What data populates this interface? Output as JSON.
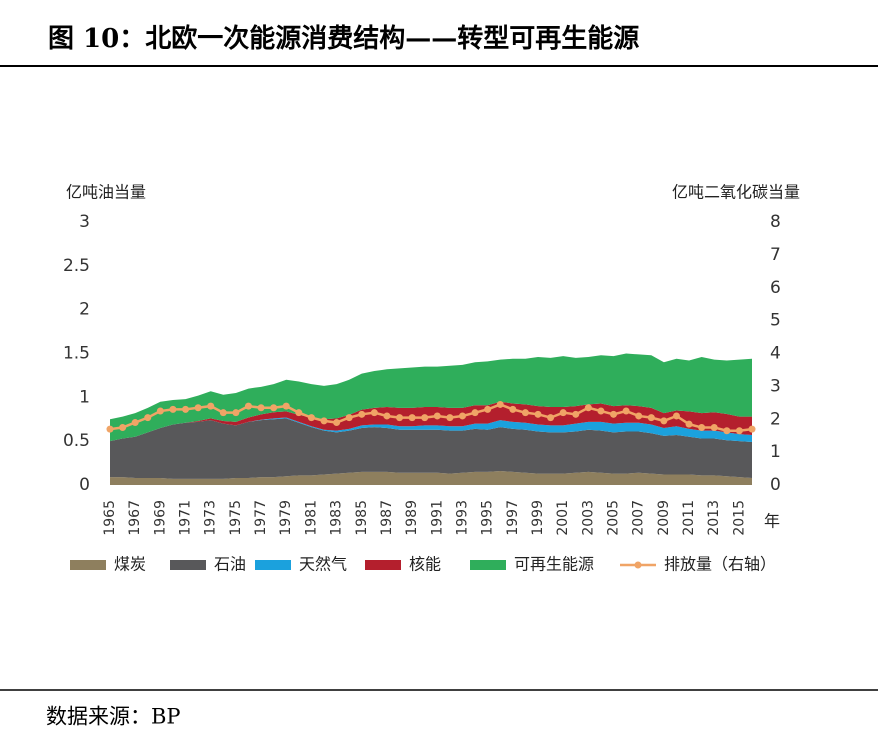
{
  "chart_data": {
    "type": "stacked-area-line",
    "title": "图 10：北欧一次能源消费结构——转型可再生能源",
    "source": "数据来源：BP",
    "y_label": "亿吨油当量",
    "y2_label": "亿吨二氧化碳当量",
    "x_label": "年",
    "x": [
      1965,
      1966,
      1967,
      1968,
      1969,
      1970,
      1971,
      1972,
      1973,
      1974,
      1975,
      1976,
      1977,
      1978,
      1979,
      1980,
      1981,
      1982,
      1983,
      1984,
      1985,
      1986,
      1987,
      1988,
      1989,
      1990,
      1991,
      1992,
      1993,
      1994,
      1995,
      1996,
      1997,
      1998,
      1999,
      2000,
      2001,
      2002,
      2003,
      2004,
      2005,
      2006,
      2007,
      2008,
      2009,
      2010,
      2011,
      2012,
      2013,
      2014,
      2015,
      2016
    ],
    "xlim": [
      1965,
      2016
    ],
    "xticks": [
      1965,
      1967,
      1969,
      1971,
      1973,
      1975,
      1977,
      1979,
      1981,
      1983,
      1985,
      1987,
      1989,
      1991,
      1993,
      1995,
      1997,
      1999,
      2001,
      2003,
      2005,
      2007,
      2009,
      2011,
      2013,
      2015
    ],
    "ylim": [
      0,
      3
    ],
    "yticks": [
      0,
      0.5,
      1,
      1.5,
      2,
      2.5,
      3
    ],
    "y2lim": [
      0,
      8
    ],
    "y2ticks": [
      0,
      1,
      2,
      3,
      4,
      5,
      6,
      7,
      8
    ],
    "grid": false,
    "series": [
      {
        "name": "煤炭",
        "color": "#8e7f5e",
        "values": [
          0.09,
          0.09,
          0.08,
          0.08,
          0.08,
          0.07,
          0.07,
          0.07,
          0.07,
          0.07,
          0.08,
          0.08,
          0.09,
          0.09,
          0.1,
          0.11,
          0.11,
          0.12,
          0.13,
          0.14,
          0.15,
          0.15,
          0.15,
          0.14,
          0.14,
          0.14,
          0.14,
          0.13,
          0.14,
          0.15,
          0.15,
          0.16,
          0.15,
          0.14,
          0.13,
          0.13,
          0.13,
          0.14,
          0.15,
          0.14,
          0.13,
          0.13,
          0.14,
          0.13,
          0.12,
          0.12,
          0.12,
          0.11,
          0.11,
          0.1,
          0.09,
          0.08
        ]
      },
      {
        "name": "石油",
        "color": "#58585a",
        "values": [
          0.41,
          0.44,
          0.47,
          0.52,
          0.57,
          0.62,
          0.64,
          0.65,
          0.67,
          0.63,
          0.6,
          0.64,
          0.65,
          0.66,
          0.66,
          0.6,
          0.55,
          0.5,
          0.47,
          0.48,
          0.5,
          0.51,
          0.5,
          0.49,
          0.49,
          0.49,
          0.49,
          0.49,
          0.48,
          0.49,
          0.48,
          0.5,
          0.49,
          0.49,
          0.48,
          0.47,
          0.47,
          0.47,
          0.48,
          0.48,
          0.47,
          0.48,
          0.47,
          0.46,
          0.44,
          0.45,
          0.43,
          0.42,
          0.42,
          0.41,
          0.41,
          0.41
        ]
      },
      {
        "name": "天然气",
        "color": "#1ba1dd",
        "values": [
          0,
          0,
          0,
          0,
          0,
          0,
          0,
          0,
          0,
          0,
          0,
          0,
          0.005,
          0.01,
          0.01,
          0.01,
          0.01,
          0.01,
          0.02,
          0.02,
          0.03,
          0.03,
          0.04,
          0.04,
          0.04,
          0.05,
          0.05,
          0.05,
          0.05,
          0.06,
          0.07,
          0.08,
          0.08,
          0.08,
          0.08,
          0.08,
          0.08,
          0.09,
          0.09,
          0.1,
          0.1,
          0.1,
          0.1,
          0.1,
          0.09,
          0.1,
          0.09,
          0.09,
          0.09,
          0.09,
          0.08,
          0.08
        ]
      },
      {
        "name": "核能",
        "color": "#b41f2d",
        "values": [
          0,
          0,
          0,
          0,
          0,
          0,
          0,
          0.01,
          0.02,
          0.03,
          0.04,
          0.05,
          0.06,
          0.07,
          0.07,
          0.08,
          0.1,
          0.12,
          0.14,
          0.16,
          0.18,
          0.19,
          0.2,
          0.21,
          0.21,
          0.21,
          0.21,
          0.21,
          0.21,
          0.21,
          0.21,
          0.21,
          0.21,
          0.21,
          0.21,
          0.21,
          0.21,
          0.2,
          0.2,
          0.21,
          0.2,
          0.2,
          0.19,
          0.19,
          0.17,
          0.18,
          0.2,
          0.2,
          0.21,
          0.21,
          0.2,
          0.21
        ]
      },
      {
        "name": "可再生能源",
        "color": "#2fae5b",
        "values": [
          0.25,
          0.25,
          0.27,
          0.28,
          0.3,
          0.28,
          0.27,
          0.29,
          0.31,
          0.3,
          0.33,
          0.33,
          0.315,
          0.32,
          0.36,
          0.38,
          0.38,
          0.38,
          0.39,
          0.4,
          0.41,
          0.42,
          0.43,
          0.45,
          0.46,
          0.46,
          0.46,
          0.48,
          0.49,
          0.49,
          0.5,
          0.48,
          0.51,
          0.52,
          0.56,
          0.56,
          0.58,
          0.55,
          0.54,
          0.55,
          0.57,
          0.59,
          0.59,
          0.6,
          0.58,
          0.59,
          0.58,
          0.64,
          0.6,
          0.61,
          0.65,
          0.66
        ]
      },
      {
        "name": "排放量（右轴）",
        "color": "#f0a466",
        "axis": "y2",
        "values": [
          1.7,
          1.75,
          1.9,
          2.05,
          2.25,
          2.3,
          2.3,
          2.35,
          2.4,
          2.2,
          2.2,
          2.4,
          2.35,
          2.35,
          2.4,
          2.2,
          2.05,
          1.95,
          1.9,
          2.05,
          2.15,
          2.2,
          2.1,
          2.05,
          2.05,
          2.05,
          2.1,
          2.05,
          2.1,
          2.2,
          2.3,
          2.45,
          2.3,
          2.2,
          2.15,
          2.05,
          2.2,
          2.15,
          2.35,
          2.25,
          2.15,
          2.25,
          2.1,
          2.05,
          1.95,
          2.1,
          1.85,
          1.75,
          1.75,
          1.65,
          1.65,
          1.7
        ]
      }
    ]
  }
}
